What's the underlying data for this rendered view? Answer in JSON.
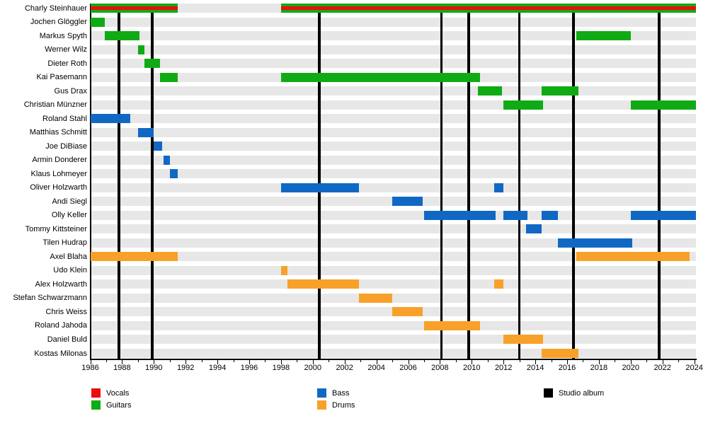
{
  "chart_data": {
    "type": "timeline",
    "x_axis": {
      "min": 1986,
      "max": 2024.1,
      "labeled_ticks": [
        1986,
        1988,
        1990,
        1992,
        1994,
        1996,
        1998,
        2000,
        2002,
        2004,
        2006,
        2008,
        2010,
        2012,
        2014,
        2016,
        2018,
        2020,
        2022,
        2024
      ],
      "minor_tick_every": 1,
      "grid": false
    },
    "roles": [
      {
        "name": "Vocals",
        "color": "#ee0c0c"
      },
      {
        "name": "Guitars",
        "color": "#10ab14"
      },
      {
        "name": "Bass",
        "color": "#1168c4"
      },
      {
        "name": "Drums",
        "color": "#f8a12a"
      }
    ],
    "albums": {
      "label": "Studio album",
      "color": "#000000",
      "years": [
        1987.8,
        1989.9,
        2000.4,
        2008.1,
        2009.8,
        2013.0,
        2016.4,
        2021.8
      ]
    },
    "members": [
      {
        "name": "Charly Steinhauer",
        "roles": [
          "Guitars",
          "Vocals",
          "Guitars"
        ],
        "segments": [
          [
            1986.0,
            1991.5
          ],
          [
            1998.0,
            2024.1
          ]
        ]
      },
      {
        "name": "Jochen Glöggler",
        "roles": [
          "Guitars"
        ],
        "segments": [
          [
            1986.0,
            1986.9
          ]
        ]
      },
      {
        "name": "Markus Spyth",
        "roles": [
          "Guitars"
        ],
        "segments": [
          [
            1986.9,
            1989.1
          ],
          [
            2016.6,
            2020.0
          ]
        ]
      },
      {
        "name": "Werner Wilz",
        "roles": [
          "Guitars"
        ],
        "segments": [
          [
            1989.0,
            1989.4
          ]
        ]
      },
      {
        "name": "Dieter Roth",
        "roles": [
          "Guitars"
        ],
        "segments": [
          [
            1989.4,
            1990.4
          ]
        ]
      },
      {
        "name": "Kai Pasemann",
        "roles": [
          "Guitars"
        ],
        "segments": [
          [
            1990.4,
            1991.5
          ],
          [
            1998.0,
            2010.5
          ]
        ]
      },
      {
        "name": "Gus Drax",
        "roles": [
          "Guitars"
        ],
        "segments": [
          [
            2010.4,
            2011.9
          ],
          [
            2014.4,
            2016.7
          ]
        ]
      },
      {
        "name": "Christian Münzner",
        "roles": [
          "Guitars"
        ],
        "segments": [
          [
            2012.0,
            2014.5
          ],
          [
            2020.0,
            2024.1
          ]
        ]
      },
      {
        "name": "Roland Stahl",
        "roles": [
          "Bass"
        ],
        "segments": [
          [
            1986.0,
            1988.5
          ]
        ]
      },
      {
        "name": "Matthias Schmitt",
        "roles": [
          "Bass"
        ],
        "segments": [
          [
            1989.0,
            1990.0
          ]
        ]
      },
      {
        "name": "Joe DiBiase",
        "roles": [
          "Bass"
        ],
        "segments": [
          [
            1990.0,
            1990.5
          ]
        ]
      },
      {
        "name": "Armin Donderer",
        "roles": [
          "Bass"
        ],
        "segments": [
          [
            1990.6,
            1991.0
          ]
        ]
      },
      {
        "name": "Klaus Lohmeyer",
        "roles": [
          "Bass"
        ],
        "segments": [
          [
            1991.0,
            1991.5
          ]
        ]
      },
      {
        "name": "Oliver Holzwarth",
        "roles": [
          "Bass"
        ],
        "segments": [
          [
            1998.0,
            2002.9
          ],
          [
            2011.4,
            2012.0
          ]
        ]
      },
      {
        "name": "Andi Siegl",
        "roles": [
          "Bass"
        ],
        "segments": [
          [
            2005.0,
            2006.9
          ]
        ]
      },
      {
        "name": "Olly Keller",
        "roles": [
          "Bass"
        ],
        "segments": [
          [
            2007.0,
            2011.5
          ],
          [
            2012.0,
            2013.5
          ],
          [
            2014.4,
            2015.4
          ],
          [
            2020.0,
            2024.1
          ]
        ]
      },
      {
        "name": "Tommy Kittsteiner",
        "roles": [
          "Bass"
        ],
        "segments": [
          [
            2013.4,
            2014.4
          ]
        ]
      },
      {
        "name": "Tilen Hudrap",
        "roles": [
          "Bass"
        ],
        "segments": [
          [
            2015.4,
            2020.1
          ]
        ]
      },
      {
        "name": "Axel Blaha",
        "roles": [
          "Drums"
        ],
        "segments": [
          [
            1986.0,
            1991.5
          ],
          [
            2016.6,
            2023.7
          ]
        ]
      },
      {
        "name": "Udo Klein",
        "roles": [
          "Drums"
        ],
        "segments": [
          [
            1998.0,
            1998.4
          ]
        ]
      },
      {
        "name": "Alex Holzwarth",
        "roles": [
          "Drums"
        ],
        "segments": [
          [
            1998.4,
            2002.9
          ],
          [
            2011.4,
            2012.0
          ]
        ]
      },
      {
        "name": "Stefan Schwarzmann",
        "roles": [
          "Drums"
        ],
        "segments": [
          [
            2002.9,
            2005.0
          ]
        ]
      },
      {
        "name": "Chris Weiss",
        "roles": [
          "Drums"
        ],
        "segments": [
          [
            2005.0,
            2006.9
          ]
        ]
      },
      {
        "name": "Roland Jahoda",
        "roles": [
          "Drums"
        ],
        "segments": [
          [
            2007.0,
            2010.5
          ]
        ]
      },
      {
        "name": "Daniel Buld",
        "roles": [
          "Drums"
        ],
        "segments": [
          [
            2012.0,
            2014.5
          ]
        ]
      },
      {
        "name": "Kostas Milonas",
        "roles": [
          "Drums"
        ],
        "segments": [
          [
            2014.4,
            2016.7
          ]
        ]
      }
    ],
    "legend": {
      "columns": [
        [
          "Vocals",
          "Guitars"
        ],
        [
          "Bass",
          "Drums"
        ],
        [
          "Studio album"
        ]
      ]
    }
  }
}
